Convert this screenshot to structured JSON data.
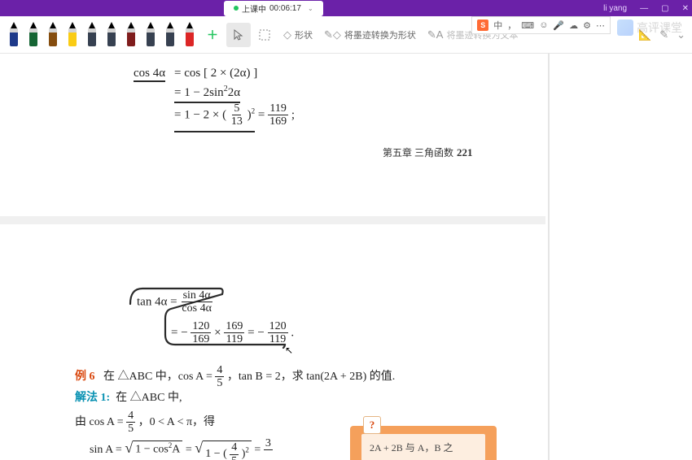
{
  "titlebar": {
    "status_label": "上课中",
    "timer": "00:06:17",
    "user": "li yang"
  },
  "ime": {
    "logo": "S",
    "lang": "中",
    "items": [
      "⌨",
      "☺",
      "🎤",
      "☁",
      "⚙",
      "⋯"
    ]
  },
  "watermark": "高评课堂",
  "toolbar": {
    "pens": [
      {
        "tip": "#000",
        "body": "#1e3a8a"
      },
      {
        "tip": "#000",
        "body": "#166534"
      },
      {
        "tip": "#000",
        "body": "#854d0e"
      },
      {
        "tip": "#000",
        "body": "#facc15"
      },
      {
        "tip": "#000",
        "body": "#374151"
      },
      {
        "tip": "#000",
        "body": "#374151"
      },
      {
        "tip": "#000",
        "body": "#7f1d1d"
      },
      {
        "tip": "#000",
        "body": "#374151"
      },
      {
        "tip": "#000",
        "body": "#374151"
      },
      {
        "tip": "#000",
        "body": "#dc2626"
      }
    ],
    "add": "＋",
    "pointer": "☟",
    "lasso": "⬚",
    "shape_label": "形状",
    "ink2shape_label": "将墨迹转换为形状",
    "ink2text_label": "将墨迹转换为文本"
  },
  "content": {
    "eq1_l": "cos 4α",
    "eq1_r1": "= cos [ 2 × (2α) ]",
    "eq1_r2_a": "= 1 − 2sin",
    "eq1_r2_b": "2",
    "eq1_r2_c": "2α",
    "eq1_r3_a": "= 1 − 2 × (",
    "eq1_r3_fn": "5",
    "eq1_r3_fd": "13",
    "eq1_r3_b": ")",
    "eq1_r3_exp": "2",
    "eq1_r3_c": " = ",
    "eq1_r3_rn": "119",
    "eq1_r3_rd": "169",
    "eq1_r3_d": " ;",
    "chapter_label": "第五章  三角函数",
    "page_no": "221",
    "eq2_l": "tan 4α = ",
    "eq2_fn": "sin 4α",
    "eq2_fd": "cos 4α",
    "eq3_a": "= − ",
    "eq3_f1n": "120",
    "eq3_f1d": "169",
    "eq3_b": " × ",
    "eq3_f2n": "169",
    "eq3_f2d": "119",
    "eq3_c": " = − ",
    "eq3_f3n": "120",
    "eq3_f3d": "119",
    "eq3_d": ".",
    "ex6_label": "例 6",
    "ex6_text_a": "在 △ABC 中，cos A = ",
    "ex6_fn": "4",
    "ex6_fd": "5",
    "ex6_text_b": "，tan B = 2，求 tan(2A + 2B) 的值.",
    "sol_label": "解法 1:",
    "sol_text": "在 △ABC 中,",
    "line2_a": "由 cos A = ",
    "line2_fn": "4",
    "line2_fd": "5",
    "line2_b": "，0 < A < π，得",
    "line3_a": "sin A = ",
    "line3_sq1": "1 − cos",
    "line3_sq1e": "2",
    "line3_sq1b": "A",
    "line3_mid": " = ",
    "line3_sq2a": "1 − (",
    "line3_sq2fn": "4",
    "line3_sq2fd": "5",
    "line3_sq2b": ")",
    "line3_sq2e": "2",
    "line3_end": " = ",
    "line3_rn": "3",
    "callout_q": "?",
    "callout_text": "2A + 2B 与 A，B 之"
  },
  "ink": {
    "color": "#2a2a2a",
    "stroke_width": 2.2
  }
}
